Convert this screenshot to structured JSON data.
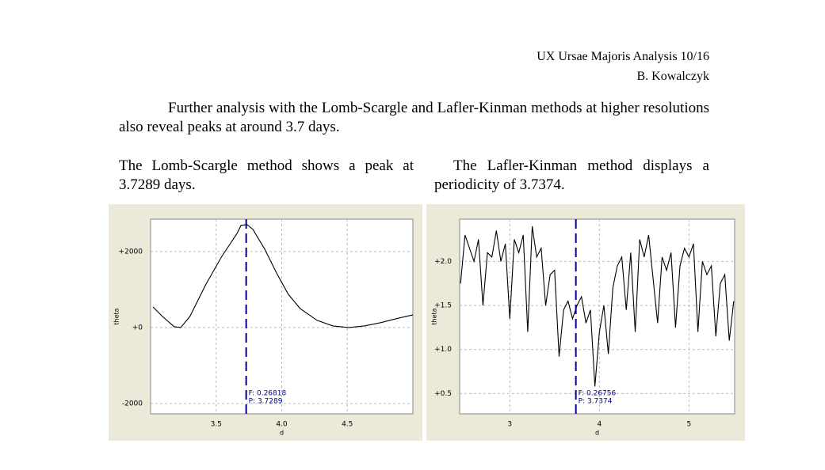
{
  "header": {
    "title": "UX Ursae Majoris Analysis 10/16",
    "author": "B. Kowalczyk"
  },
  "paragraphs": [
    "Further analysis with the Lomb-Scargle and Lafler-Kinman methods at higher resolutions also reveal peaks at around 3.7 days."
  ],
  "columns": [
    "The Lomb-Scargle method shows a peak at 3.7289 days.",
    "The Lafler-Kinman method displays a periodicity of 3.7374."
  ],
  "chart_data": [
    {
      "type": "line",
      "ylabel": "theta",
      "xlabel": "d",
      "color": "#000000",
      "grid": true,
      "x": [
        3.018,
        3.09,
        3.18,
        3.23,
        3.3,
        3.42,
        3.54,
        3.66,
        3.69,
        3.735,
        3.78,
        3.87,
        3.96,
        4.05,
        4.14,
        4.27,
        4.39,
        4.51,
        4.63,
        4.75,
        4.87,
        5.0
      ],
      "values": [
        542,
        292,
        21,
        0,
        292,
        1125,
        1854,
        2479,
        2688,
        2708,
        2583,
        2063,
        1438,
        875,
        500,
        188,
        42,
        0,
        42,
        125,
        229,
        333
      ],
      "xlim": [
        3.0,
        5.0
      ],
      "ylim": [
        -2270,
        2850
      ],
      "xticks": [
        3.5,
        {
          "value": 4,
          "label": "4.0"
        },
        4.5
      ],
      "yticks": [
        {
          "value": 2000,
          "label": "+2000"
        },
        {
          "value": 0,
          "label": "+0"
        },
        -2000
      ],
      "marker": {
        "x": 3.7289,
        "color": "#00008b"
      },
      "annotations": [
        "F: 0.26818",
        "P: 3.7289"
      ]
    },
    {
      "type": "line",
      "ylabel": "theta",
      "xlabel": "d",
      "color": "#000000",
      "grid": true,
      "x": [
        2.45,
        2.5,
        2.55,
        2.6,
        2.65,
        2.7,
        2.75,
        2.8,
        2.85,
        2.9,
        2.95,
        3.0,
        3.05,
        3.1,
        3.15,
        3.2,
        3.25,
        3.3,
        3.35,
        3.4,
        3.45,
        3.5,
        3.55,
        3.6,
        3.65,
        3.7,
        3.75,
        3.8,
        3.85,
        3.9,
        3.95,
        4.0,
        4.05,
        4.1,
        4.15,
        4.2,
        4.25,
        4.3,
        4.35,
        4.4,
        4.45,
        4.5,
        4.55,
        4.6,
        4.65,
        4.7,
        4.75,
        4.8,
        4.85,
        4.9,
        4.95,
        5.0,
        5.05,
        5.1,
        5.15,
        5.2,
        5.25,
        5.3,
        5.35,
        5.4,
        5.45,
        5.5
      ],
      "values": [
        1.75,
        2.3,
        2.15,
        2.0,
        2.25,
        1.5,
        2.1,
        2.05,
        2.35,
        2.0,
        2.2,
        1.35,
        2.25,
        2.1,
        2.3,
        1.2,
        2.4,
        2.05,
        2.15,
        1.5,
        1.85,
        1.9,
        0.92,
        1.45,
        1.55,
        1.35,
        1.5,
        1.6,
        1.3,
        1.45,
        0.58,
        1.2,
        1.5,
        0.95,
        1.7,
        1.95,
        2.05,
        1.45,
        2.1,
        1.2,
        2.25,
        2.05,
        2.3,
        1.8,
        1.3,
        2.05,
        1.9,
        2.1,
        1.25,
        1.95,
        2.15,
        2.05,
        2.2,
        1.2,
        2.0,
        1.85,
        1.95,
        1.15,
        1.75,
        1.85,
        1.1,
        1.55
      ],
      "xlim": [
        2.44,
        5.51
      ],
      "ylim": [
        0.27,
        2.48
      ],
      "xticks": [
        3,
        4,
        5
      ],
      "yticks": [
        {
          "value": 2,
          "label": "+2.0"
        },
        {
          "value": 1.5,
          "label": "+1.5"
        },
        {
          "value": 1,
          "label": "+1.0"
        },
        {
          "value": 0.5,
          "label": "+0.5"
        }
      ],
      "marker": {
        "x": 3.7374,
        "color": "#00008b"
      },
      "annotations": [
        "F: 0.26756",
        "P: 3.7374"
      ]
    }
  ]
}
